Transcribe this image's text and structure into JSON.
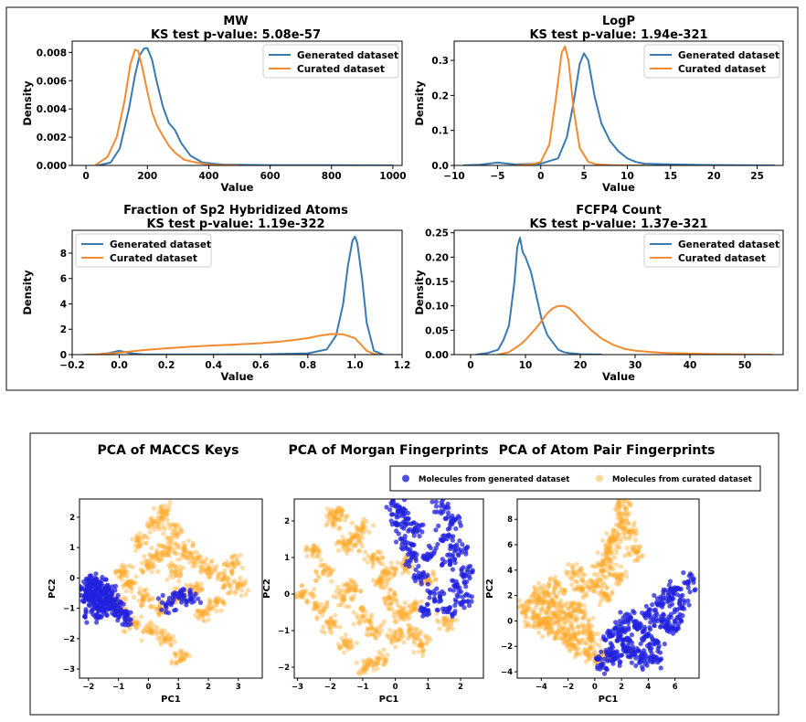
{
  "colors": {
    "generated_line": "#3a7ab0",
    "curated_line": "#f28a30",
    "generated_points": "#2222dd",
    "curated_points": "#ffa726"
  },
  "chart_data": [
    {
      "type": "line",
      "title": "MW",
      "subtitle": "KS test p-value: 5.08e-57",
      "xlabel": "Value",
      "ylabel": "Density",
      "xlim": [
        -45,
        1030
      ],
      "ylim": [
        0,
        0.0088
      ],
      "xticks": [
        0,
        200,
        400,
        600,
        800,
        1000
      ],
      "yticks": [
        0,
        0.002,
        0.004,
        0.006,
        0.008
      ],
      "ytick_labels": [
        "0.000",
        "0.002",
        "0.004",
        "0.006",
        "0.008"
      ],
      "legend": "top-right",
      "series": [
        {
          "name": "Generated dataset",
          "x": [
            40,
            80,
            110,
            140,
            160,
            175,
            190,
            200,
            215,
            230,
            250,
            270,
            290,
            310,
            340,
            380,
            450,
            600,
            800,
            1000
          ],
          "y": [
            0,
            0.0002,
            0.0012,
            0.004,
            0.0064,
            0.0078,
            0.0083,
            0.0083,
            0.0075,
            0.006,
            0.0042,
            0.003,
            0.0025,
            0.0016,
            0.0007,
            0.0002,
            5e-05,
            2e-05,
            1e-05,
            0
          ]
        },
        {
          "name": "Curated dataset",
          "x": [
            30,
            70,
            100,
            125,
            145,
            160,
            170,
            185,
            200,
            215,
            230,
            250,
            270,
            290,
            320,
            360,
            400,
            450,
            500
          ],
          "y": [
            0,
            0.0006,
            0.002,
            0.0045,
            0.0072,
            0.0082,
            0.0081,
            0.0068,
            0.0052,
            0.0038,
            0.0029,
            0.0021,
            0.0014,
            0.0009,
            0.0004,
            0.0002,
            5e-05,
            2e-05,
            0
          ]
        }
      ]
    },
    {
      "type": "line",
      "title": "LogP",
      "subtitle": "KS test p-value: 1.94e-321",
      "xlabel": "Value",
      "ylabel": "Density",
      "xlim": [
        -10,
        28
      ],
      "ylim": [
        0,
        0.355
      ],
      "xticks": [
        -10,
        -5,
        0,
        5,
        10,
        15,
        20,
        25
      ],
      "yticks": [
        0,
        0.1,
        0.2,
        0.3
      ],
      "ytick_labels": [
        "0.0",
        "0.1",
        "0.2",
        "0.3"
      ],
      "legend": "top-right",
      "series": [
        {
          "name": "Generated dataset",
          "x": [
            -9,
            -7,
            -5,
            -3,
            0,
            2,
            3,
            3.8,
            4.5,
            5,
            5.5,
            6.2,
            7,
            8,
            9,
            10,
            11,
            12,
            15,
            20,
            27
          ],
          "y": [
            0,
            0.002,
            0.008,
            0.003,
            0.005,
            0.02,
            0.08,
            0.18,
            0.29,
            0.32,
            0.3,
            0.2,
            0.12,
            0.07,
            0.04,
            0.02,
            0.01,
            0.005,
            0.003,
            0.001,
            0
          ]
        },
        {
          "name": "Curated dataset",
          "x": [
            -3,
            -1,
            0,
            1,
            1.8,
            2.4,
            2.8,
            3.2,
            3.8,
            4.5,
            5.5,
            6.5,
            8,
            10,
            12
          ],
          "y": [
            0,
            0.003,
            0.01,
            0.06,
            0.2,
            0.32,
            0.34,
            0.3,
            0.16,
            0.05,
            0.01,
            0.003,
            0.001,
            0,
            0
          ]
        }
      ]
    },
    {
      "type": "line",
      "title": "Fraction of Sp2 Hybridized Atoms",
      "subtitle": "KS test p-value: 1.19e-322",
      "xlabel": "Value",
      "ylabel": "Density",
      "xlim": [
        -0.2,
        1.2
      ],
      "ylim": [
        0,
        9.8
      ],
      "xticks": [
        -0.2,
        0,
        0.2,
        0.4,
        0.6,
        0.8,
        1.0,
        1.2
      ],
      "xtick_labels": [
        "−0.2",
        "0.0",
        "0.2",
        "0.4",
        "0.6",
        "0.8",
        "1.0",
        "1.2"
      ],
      "yticks": [
        0,
        2,
        4,
        6,
        8
      ],
      "ytick_labels": [
        "0",
        "2",
        "4",
        "6",
        "8"
      ],
      "legend": "top-left",
      "series": [
        {
          "name": "Generated dataset",
          "x": [
            -0.1,
            -0.05,
            0,
            0.05,
            0.1,
            0.3,
            0.6,
            0.8,
            0.88,
            0.92,
            0.95,
            0.97,
            0.99,
            1.0,
            1.01,
            1.03,
            1.05,
            1.08,
            1.12
          ],
          "y": [
            0,
            0.1,
            0.3,
            0.1,
            0.02,
            0.01,
            0.02,
            0.1,
            0.4,
            1.5,
            4,
            7,
            9,
            9.3,
            8.8,
            6,
            2.5,
            0.3,
            0
          ]
        },
        {
          "name": "Curated dataset",
          "x": [
            -0.15,
            -0.1,
            -0.05,
            0,
            0.05,
            0.1,
            0.2,
            0.3,
            0.4,
            0.5,
            0.6,
            0.7,
            0.8,
            0.85,
            0.9,
            0.95,
            1.0,
            1.02,
            1.05,
            1.08,
            1.1
          ],
          "y": [
            0,
            0.02,
            0.08,
            0.15,
            0.25,
            0.35,
            0.5,
            0.62,
            0.72,
            0.8,
            0.9,
            1.05,
            1.3,
            1.5,
            1.62,
            1.6,
            1.3,
            0.9,
            0.3,
            0.05,
            0
          ]
        }
      ]
    },
    {
      "type": "line",
      "title": "FCFP4 Count",
      "subtitle": "KS test p-value: 1.37e-321",
      "xlabel": "Value",
      "ylabel": "Density",
      "xlim": [
        -3,
        57
      ],
      "ylim": [
        0,
        0.255
      ],
      "xticks": [
        0,
        10,
        20,
        30,
        40,
        50
      ],
      "yticks": [
        0,
        0.05,
        0.1,
        0.15,
        0.2,
        0.25
      ],
      "ytick_labels": [
        "0.00",
        "0.05",
        "0.10",
        "0.15",
        "0.20",
        "0.25"
      ],
      "legend": "top-right",
      "series": [
        {
          "name": "Generated dataset",
          "x": [
            1,
            3,
            5,
            6,
            7,
            8,
            8.5,
            9,
            9.5,
            10,
            11,
            12,
            13,
            14,
            15,
            16,
            17,
            18,
            20,
            22,
            24
          ],
          "y": [
            0,
            0.003,
            0.01,
            0.03,
            0.06,
            0.15,
            0.22,
            0.24,
            0.21,
            0.2,
            0.17,
            0.12,
            0.07,
            0.04,
            0.025,
            0.01,
            0.005,
            0.003,
            0.001,
            0.0005,
            0
          ]
        },
        {
          "name": "Curated dataset",
          "x": [
            5,
            7,
            9,
            10,
            12,
            14,
            15,
            16,
            17,
            18,
            19,
            20,
            22,
            24,
            26,
            28,
            30,
            33,
            36,
            40,
            45,
            50,
            55
          ],
          "y": [
            0,
            0.005,
            0.02,
            0.03,
            0.055,
            0.085,
            0.095,
            0.1,
            0.1,
            0.095,
            0.085,
            0.072,
            0.05,
            0.032,
            0.02,
            0.012,
            0.008,
            0.005,
            0.003,
            0.002,
            0.001,
            0.0005,
            0
          ]
        }
      ]
    },
    {
      "type": "scatter",
      "title": "PCA of MACCS Keys",
      "xlabel": "PC1",
      "ylabel": "PC2",
      "xlim": [
        -2.3,
        3.8
      ],
      "ylim": [
        -3.3,
        2.6
      ],
      "xticks": [
        -2,
        -1,
        0,
        1,
        2,
        3
      ],
      "xtick_labels": [
        "−2",
        "−1",
        "0",
        "1",
        "2",
        "3"
      ],
      "yticks": [
        -3,
        -2,
        -1,
        0,
        1,
        2
      ],
      "ytick_labels": [
        "−3",
        "−2",
        "−1",
        "0",
        "1",
        "2"
      ],
      "series": [
        {
          "name": "Molecules from generated dataset",
          "x": [
            -2.0,
            -1.9,
            -1.8,
            -1.7,
            -1.6,
            -1.5,
            -1.9,
            -1.7,
            -1.4,
            -1.2,
            -1.0,
            -0.8,
            -1.6,
            -1.3,
            -2.1,
            -1.85,
            -1.55,
            -1.1,
            0.6,
            1.1,
            1.4
          ],
          "y": [
            -0.4,
            -0.7,
            -0.2,
            -0.9,
            -0.5,
            -1.0,
            -0.1,
            -0.6,
            -0.8,
            -0.7,
            -1.1,
            -1.3,
            -0.3,
            -0.5,
            -0.6,
            -1.2,
            -0.95,
            -0.9,
            -0.9,
            -0.5,
            -0.7
          ]
        },
        {
          "name": "Molecules from curated dataset",
          "x": [
            0.5,
            0.2,
            -0.3,
            0.8,
            1.2,
            1.6,
            2.0,
            2.5,
            3.0,
            0.0,
            -0.6,
            -1.0,
            -0.5,
            0.4,
            1.0,
            0.6,
            1.8,
            2.3,
            0.3,
            0.9,
            1.1,
            -0.2,
            0.7,
            1.5,
            0.1,
            -0.8,
            2.8
          ],
          "y": [
            2.2,
            1.8,
            1.2,
            1.5,
            0.9,
            0.6,
            0.3,
            0.0,
            -0.3,
            0.4,
            -0.2,
            -0.8,
            -1.5,
            -1.0,
            -0.6,
            -2.0,
            -1.2,
            -0.8,
            0.8,
            0.2,
            -2.6,
            -0.6,
            1.0,
            -0.3,
            -1.8,
            0.2,
            0.5
          ]
        }
      ]
    },
    {
      "type": "scatter",
      "title": "PCA of Morgan Fingerprints",
      "xlabel": "PC1",
      "ylabel": "PC2",
      "xlim": [
        -3.1,
        2.7
      ],
      "ylim": [
        -2.3,
        2.6
      ],
      "xticks": [
        -3,
        -2,
        -1,
        0,
        1,
        2
      ],
      "xtick_labels": [
        "−3",
        "−2",
        "−1",
        "0",
        "1",
        "2"
      ],
      "yticks": [
        -2,
        -1,
        0,
        1,
        2
      ],
      "ytick_labels": [
        "−2",
        "−1",
        "0",
        "1",
        "2"
      ],
      "series": [
        {
          "name": "Molecules from generated dataset",
          "x": [
            0.0,
            0.1,
            0.3,
            0.5,
            0.8,
            1.2,
            1.5,
            1.8,
            2.0,
            2.2,
            1.4,
            1.6,
            1.9,
            0.9,
            0.2,
            0.6,
            1.1,
            1.7,
            2.1
          ],
          "y": [
            2.4,
            1.9,
            1.4,
            1.0,
            0.5,
            0.0,
            1.6,
            2.0,
            1.2,
            0.6,
            2.4,
            -0.4,
            0.2,
            -0.4,
            2.2,
            1.8,
            1.1,
            0.9,
            -0.2
          ]
        },
        {
          "name": "Molecules from curated dataset",
          "x": [
            -2.8,
            -2.5,
            -2.2,
            -1.9,
            -1.6,
            -1.3,
            -1.0,
            -0.7,
            -0.4,
            -0.1,
            0.2,
            0.5,
            0.8,
            -2.0,
            -1.5,
            -1.0,
            -0.5,
            0.0,
            0.5,
            -2.4,
            -1.8,
            -1.2,
            -0.6,
            0.3,
            -1.6,
            -0.9,
            -0.2,
            1.0,
            1.6
          ],
          "y": [
            0.0,
            1.2,
            0.6,
            2.0,
            1.4,
            0.2,
            1.8,
            1.0,
            0.3,
            -0.2,
            -0.6,
            -1.0,
            -1.4,
            -0.8,
            -1.4,
            -0.6,
            -1.8,
            -1.2,
            -0.4,
            -0.4,
            2.2,
            1.4,
            -1.0,
            0.8,
            -0.1,
            -2.0,
            0.6,
            0.4,
            -0.8
          ]
        }
      ]
    },
    {
      "type": "scatter",
      "title": "PCA of Atom Pair Fingerprints",
      "xlabel": "PC1",
      "ylabel": "PC2",
      "xlim": [
        -5.8,
        7.8
      ],
      "ylim": [
        -4.5,
        9.6
      ],
      "xticks": [
        -4,
        -2,
        0,
        2,
        4,
        6
      ],
      "xtick_labels": [
        "−4",
        "−2",
        "0",
        "2",
        "4",
        "6"
      ],
      "yticks": [
        -4,
        -2,
        0,
        2,
        4,
        6,
        8
      ],
      "ytick_labels": [
        "−4",
        "−2",
        "0",
        "2",
        "4",
        "6",
        "8"
      ],
      "series": [
        {
          "name": "Molecules from generated dataset",
          "x": [
            0.5,
            1.0,
            1.5,
            2.0,
            2.5,
            3.0,
            3.5,
            4.0,
            4.5,
            5.0,
            5.5,
            6.0,
            6.5,
            7.0,
            2.0,
            3.0,
            4.0,
            5.0,
            6.0,
            1.2,
            2.5,
            4.5,
            5.5
          ],
          "y": [
            -3.5,
            -2.5,
            -3.0,
            -1.5,
            -2.2,
            -0.5,
            -3.2,
            0.5,
            -1.8,
            1.5,
            -0.5,
            2.5,
            1.0,
            3.0,
            -0.8,
            -2.6,
            -1.0,
            0.0,
            -0.2,
            -1.2,
            0.2,
            -3.0,
            2.0
          ]
        },
        {
          "name": "Molecules from curated dataset",
          "x": [
            -5.0,
            -4.5,
            -4.0,
            -3.5,
            -3.0,
            -2.5,
            -2.0,
            -1.5,
            -1.0,
            -0.5,
            0.0,
            0.5,
            1.0,
            1.5,
            2.0,
            2.5,
            3.0,
            -4.2,
            -3.2,
            -2.2,
            -1.2,
            -0.2,
            0.8,
            1.8,
            -3.8,
            -2.8,
            -1.8,
            -0.8,
            2.2,
            1.2,
            -1.5,
            0.5
          ],
          "y": [
            1.0,
            0.0,
            1.5,
            -0.5,
            0.5,
            -1.0,
            1.0,
            -2.0,
            2.5,
            -2.5,
            3.0,
            4.0,
            5.0,
            6.5,
            8.0,
            7.0,
            5.5,
            2.2,
            1.6,
            -0.2,
            0.8,
            -1.4,
            2.0,
            3.5,
            -0.2,
            2.8,
            -1.2,
            -0.5,
            9.0,
            6.0,
            3.8,
            -2.8
          ]
        }
      ]
    }
  ]
}
